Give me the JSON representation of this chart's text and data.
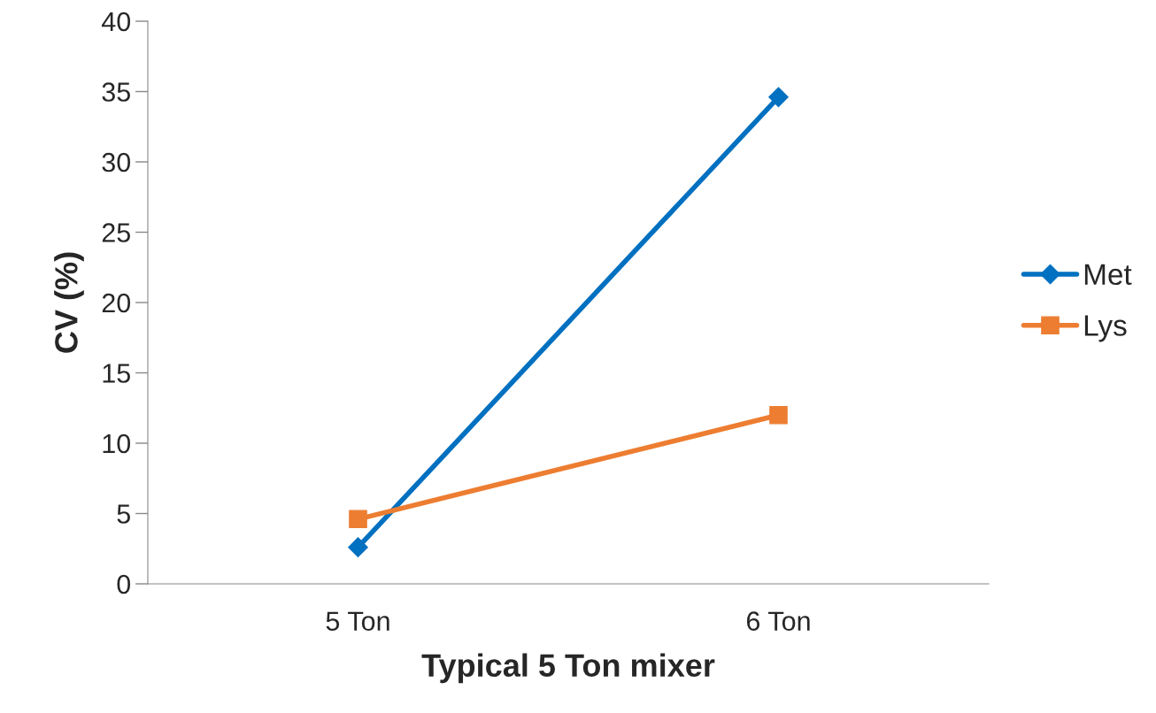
{
  "chart_data": {
    "type": "line",
    "xlabel": "Typical 5 Ton mixer",
    "ylabel": "CV (%)",
    "categories": [
      "5 Ton",
      "6 Ton"
    ],
    "series": [
      {
        "name": "Met",
        "color": "#0070c0",
        "values": [
          2.6,
          34.6
        ],
        "marker": "diamond"
      },
      {
        "name": "Lys",
        "color": "#ed7d31",
        "values": [
          4.6,
          12.0
        ],
        "marker": "square"
      }
    ],
    "ylim": [
      0,
      40
    ],
    "yticks": [
      0,
      5,
      10,
      15,
      20,
      25,
      30,
      35,
      40
    ],
    "grid": false,
    "legend": "right",
    "line_style": "solid"
  }
}
